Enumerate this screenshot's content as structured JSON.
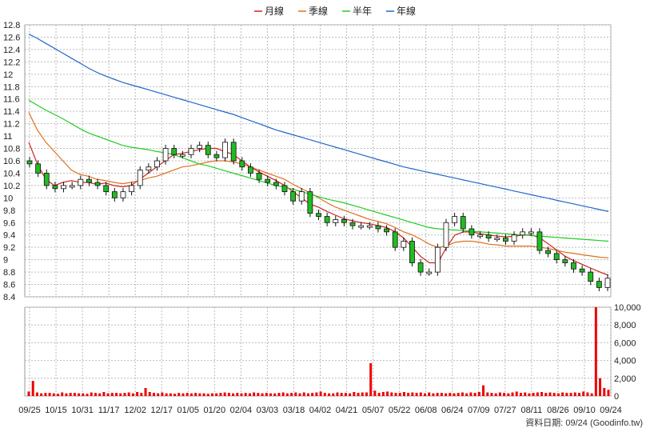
{
  "legend": {
    "items": [
      {
        "label": "月線",
        "color": "#cc2222"
      },
      {
        "label": "季線",
        "color": "#e07020"
      },
      {
        "label": "半年",
        "color": "#22cc22"
      },
      {
        "label": "年線",
        "color": "#2266cc"
      }
    ]
  },
  "footer": {
    "source": "資料日期: 09/24  (Goodinfo.tw)"
  },
  "chart_data": [
    {
      "type": "candlestick",
      "name": "price",
      "y_ticks": [
        "12.8",
        "12.6",
        "12.4",
        "12.2",
        "12",
        "11.8",
        "11.6",
        "11.4",
        "11.2",
        "11",
        "10.8",
        "10.6",
        "10.4",
        "10.2",
        "10",
        "9.8",
        "9.6",
        "9.4",
        "9.2",
        "9",
        "8.8",
        "8.6",
        "8.4"
      ],
      "ylim": [
        8.4,
        12.8
      ],
      "x_ticks": [
        "09/25",
        "10/15",
        "10/31",
        "11/17",
        "12/02",
        "12/17",
        "01/05",
        "01/20",
        "02/04",
        "03/03",
        "03/18",
        "04/02",
        "04/21",
        "05/07",
        "05/22",
        "06/08",
        "06/24",
        "07/09",
        "07/27",
        "08/11",
        "08/26",
        "09/10",
        "09/24"
      ],
      "grid": true,
      "candle_closes": [
        10.55,
        10.4,
        10.2,
        10.15,
        10.2,
        10.2,
        10.3,
        10.25,
        10.2,
        10.1,
        10.0,
        10.1,
        10.2,
        10.45,
        10.5,
        10.6,
        10.8,
        10.7,
        10.7,
        10.8,
        10.85,
        10.7,
        10.65,
        10.9,
        10.6,
        10.5,
        10.4,
        10.3,
        10.25,
        10.2,
        10.1,
        9.95,
        10.1,
        9.75,
        9.7,
        9.6,
        9.65,
        9.6,
        9.55,
        9.55,
        9.55,
        9.5,
        9.45,
        9.2,
        9.3,
        8.95,
        8.8,
        8.8,
        9.2,
        9.6,
        9.7,
        9.5,
        9.4,
        9.4,
        9.35,
        9.35,
        9.3,
        9.4,
        9.45,
        9.45,
        9.15,
        9.1,
        9.0,
        8.95,
        8.85,
        8.8,
        8.65,
        8.55,
        8.7
      ],
      "series": [
        {
          "name": "月線",
          "color": "#cc2222",
          "values": [
            10.9,
            10.55,
            10.3,
            10.2,
            10.25,
            10.28,
            10.25,
            10.25,
            10.22,
            10.24,
            10.2,
            10.18,
            10.2,
            10.3,
            10.4,
            10.5,
            10.6,
            10.7,
            10.72,
            10.75,
            10.78,
            10.8,
            10.8,
            10.75,
            10.7,
            10.6,
            10.5,
            10.42,
            10.35,
            10.28,
            10.2,
            10.1,
            10.0,
            9.9,
            9.85,
            9.78,
            9.72,
            9.66,
            9.63,
            9.6,
            9.58,
            9.55,
            9.52,
            9.45,
            9.35,
            9.2,
            9.05,
            8.95,
            8.95,
            9.2,
            9.4,
            9.45,
            9.45,
            9.42,
            9.4,
            9.38,
            9.37,
            9.38,
            9.4,
            9.4,
            9.35,
            9.25,
            9.15,
            9.05,
            8.98,
            8.92,
            8.86,
            8.8,
            8.75
          ]
        },
        {
          "name": "季線",
          "color": "#e07020",
          "values": [
            11.38,
            11.1,
            10.9,
            10.75,
            10.6,
            10.45,
            10.38,
            10.35,
            10.3,
            10.28,
            10.25,
            10.23,
            10.25,
            10.28,
            10.32,
            10.35,
            10.4,
            10.45,
            10.5,
            10.52,
            10.55,
            10.58,
            10.6,
            10.6,
            10.58,
            10.55,
            10.5,
            10.45,
            10.4,
            10.35,
            10.3,
            10.22,
            10.15,
            10.08,
            10.0,
            9.92,
            9.85,
            9.8,
            9.75,
            9.7,
            9.65,
            9.62,
            9.58,
            9.52,
            9.45,
            9.4,
            9.33,
            9.25,
            9.2,
            9.22,
            9.28,
            9.3,
            9.3,
            9.28,
            9.25,
            9.24,
            9.22,
            9.22,
            9.22,
            9.22,
            9.2,
            9.18,
            9.15,
            9.12,
            9.1,
            9.08,
            9.06,
            9.04,
            9.03
          ]
        },
        {
          "name": "半年",
          "color": "#22cc22",
          "values": [
            11.58,
            11.5,
            11.42,
            11.35,
            11.28,
            11.2,
            11.12,
            11.05,
            11.0,
            10.95,
            10.9,
            10.85,
            10.82,
            10.8,
            10.78,
            10.75,
            10.73,
            10.7,
            10.65,
            10.6,
            10.55,
            10.52,
            10.48,
            10.44,
            10.4,
            10.36,
            10.32,
            10.28,
            10.24,
            10.2,
            10.17,
            10.14,
            10.1,
            10.06,
            10.02,
            9.98,
            9.95,
            9.92,
            9.88,
            9.84,
            9.8,
            9.76,
            9.72,
            9.68,
            9.64,
            9.6,
            9.56,
            9.52,
            9.5,
            9.49,
            9.48,
            9.47,
            9.46,
            9.45,
            9.44,
            9.43,
            9.42,
            9.41,
            9.4,
            9.39,
            9.38,
            9.37,
            9.36,
            9.35,
            9.34,
            9.33,
            9.32,
            9.31,
            9.3
          ]
        },
        {
          "name": "年線",
          "color": "#2266cc",
          "values": [
            12.65,
            12.58,
            12.5,
            12.42,
            12.34,
            12.26,
            12.18,
            12.1,
            12.03,
            11.97,
            11.92,
            11.87,
            11.83,
            11.79,
            11.75,
            11.71,
            11.67,
            11.63,
            11.59,
            11.55,
            11.51,
            11.47,
            11.43,
            11.39,
            11.35,
            11.3,
            11.25,
            11.2,
            11.15,
            11.1,
            11.06,
            11.02,
            10.98,
            10.94,
            10.9,
            10.86,
            10.82,
            10.78,
            10.74,
            10.7,
            10.66,
            10.62,
            10.58,
            10.54,
            10.5,
            10.47,
            10.44,
            10.41,
            10.38,
            10.35,
            10.32,
            10.29,
            10.26,
            10.23,
            10.2,
            10.17,
            10.14,
            10.11,
            10.08,
            10.05,
            10.02,
            9.99,
            9.96,
            9.93,
            9.9,
            9.87,
            9.84,
            9.81,
            9.78
          ]
        }
      ]
    },
    {
      "type": "bar",
      "name": "volume",
      "y_ticks": [
        "10,000",
        "8,000",
        "6,000",
        "4,000",
        "2,000",
        "0"
      ],
      "ylim": [
        0,
        10000
      ],
      "color": "#ee0000",
      "values": [
        500,
        1700,
        400,
        300,
        350,
        350,
        300,
        250,
        400,
        300,
        350,
        350,
        300,
        300,
        250,
        400,
        350,
        300,
        450,
        300,
        350,
        350,
        300,
        350,
        400,
        300,
        450,
        350,
        900,
        450,
        350,
        300,
        400,
        300,
        300,
        250,
        350,
        300,
        350,
        300,
        350,
        300,
        300,
        250,
        300,
        300,
        350,
        400,
        350,
        300,
        350,
        300,
        350,
        300,
        400,
        350,
        300,
        350,
        300,
        300,
        350,
        400,
        300,
        350,
        400,
        300,
        400,
        300,
        350,
        400,
        500,
        350,
        300,
        300,
        400,
        350,
        350,
        300,
        450,
        350,
        400,
        400,
        3700,
        600,
        350,
        450,
        500,
        400,
        350,
        350,
        450,
        350,
        400,
        350,
        400,
        300,
        400,
        300,
        350,
        350,
        300,
        350,
        300,
        350,
        400,
        300,
        400,
        350,
        450,
        1200,
        400,
        350,
        300,
        400,
        350,
        300,
        400,
        500,
        350,
        400,
        300,
        350,
        400,
        450,
        350,
        400,
        350,
        300,
        400,
        350,
        350,
        400,
        350,
        500,
        400,
        300,
        10000,
        2000,
        900,
        700
      ]
    }
  ]
}
